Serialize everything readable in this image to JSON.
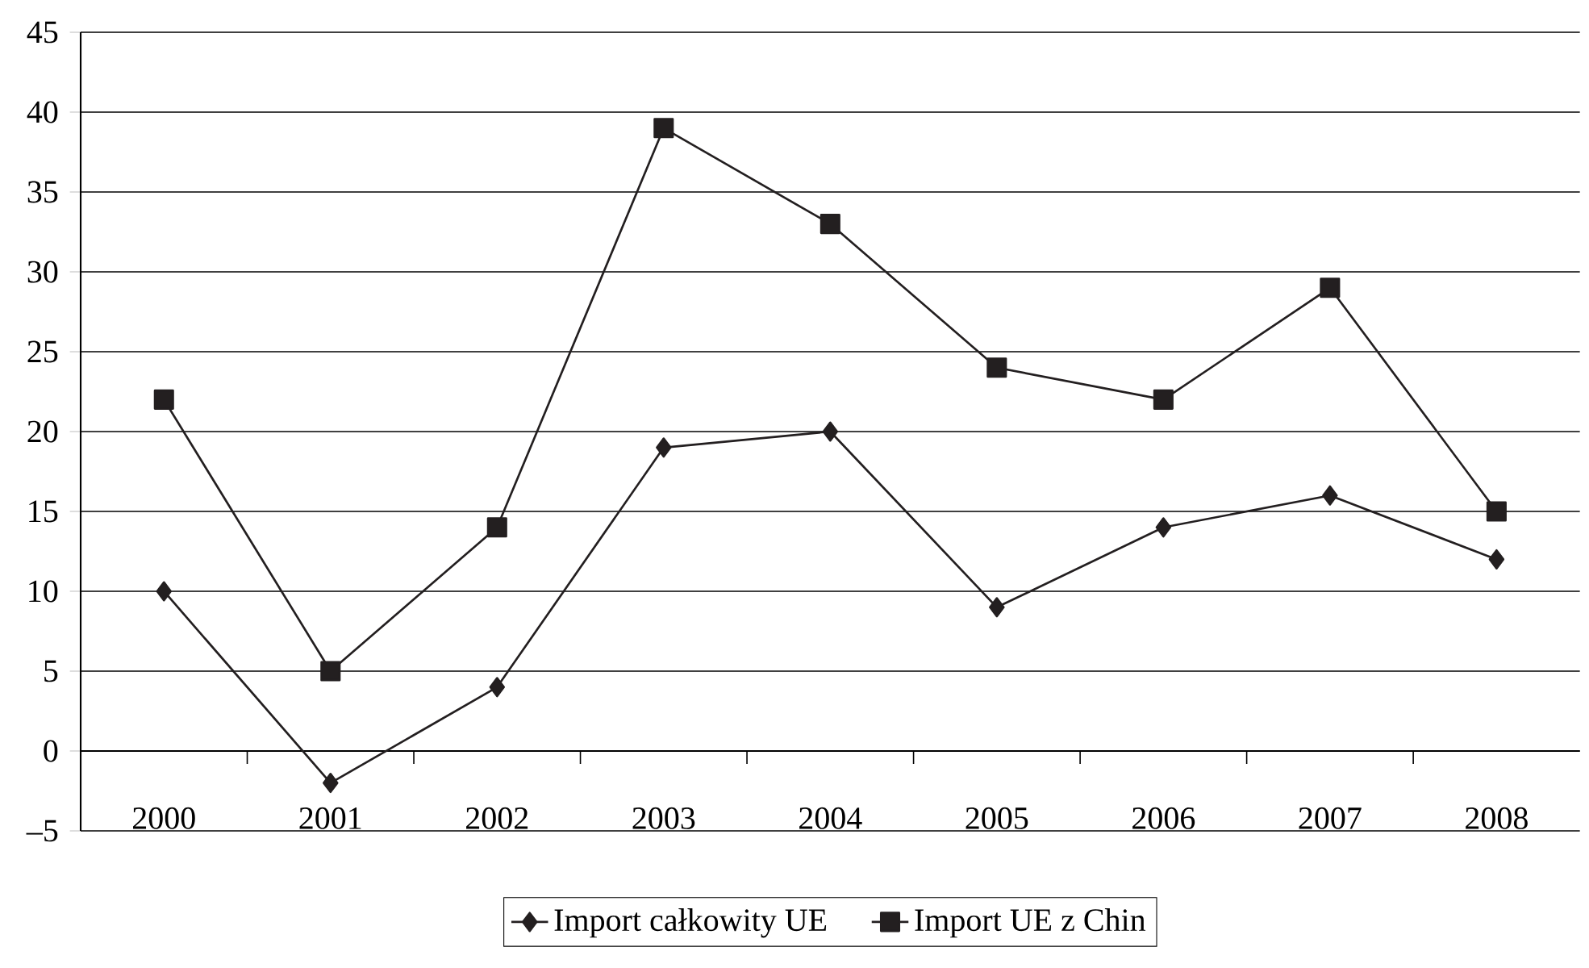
{
  "chart_data": {
    "type": "line",
    "categories": [
      "2000",
      "2001",
      "2002",
      "2003",
      "2004",
      "2005",
      "2006",
      "2007",
      "2008"
    ],
    "series": [
      {
        "name": "Import całkowity UE",
        "color": "#231f20",
        "marker": "diamond",
        "values": [
          10,
          -2,
          4,
          19,
          20,
          9,
          14,
          16,
          12
        ]
      },
      {
        "name": "Import UE z Chin",
        "color": "#231f20",
        "marker": "square",
        "values": [
          22,
          5,
          14,
          39,
          33,
          24,
          22,
          29,
          15
        ]
      }
    ],
    "ylim": [
      -5,
      45
    ],
    "yticks": [
      {
        "value": -5,
        "label": "–5"
      },
      0,
      5,
      10,
      15,
      20,
      25,
      30,
      35,
      40,
      45
    ],
    "grid": "y",
    "legend": "bottom",
    "line_style": "solid"
  }
}
